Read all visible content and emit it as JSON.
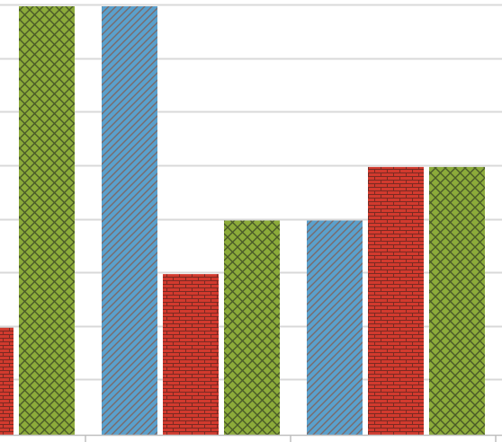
{
  "chart_data": {
    "type": "bar",
    "categories": [
      "",
      "",
      ""
    ],
    "series": [
      {
        "pattern": "diagonal-stripes",
        "color": "#5a9cc5",
        "values": [
          null,
          8,
          4
        ]
      },
      {
        "pattern": "brick",
        "color": "#c0302b",
        "values": [
          2,
          3,
          5
        ]
      },
      {
        "pattern": "crosshatch",
        "color": "#8aa93a",
        "values": [
          8,
          4,
          5
        ]
      }
    ],
    "ylim": [
      0,
      8
    ],
    "grid": true,
    "legend": "none",
    "title": "",
    "xlabel": "",
    "ylabel": ""
  }
}
